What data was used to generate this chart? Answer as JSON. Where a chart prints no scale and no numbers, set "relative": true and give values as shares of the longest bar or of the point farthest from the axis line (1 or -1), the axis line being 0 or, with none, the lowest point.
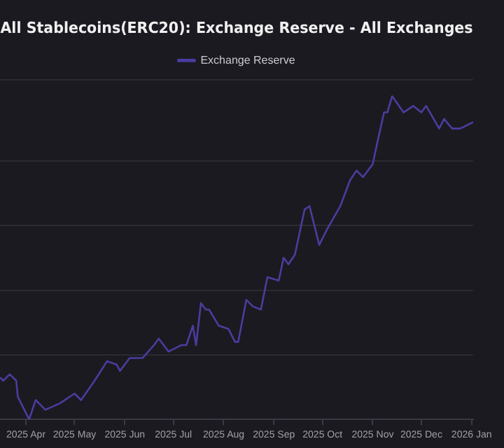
{
  "chart_data": {
    "type": "line",
    "title": "All Stablecoins(ERC20): Exchange Reserve - All Exchanges",
    "relative": true,
    "legend": "top",
    "grid": "y",
    "marker": "none",
    "x": [
      "2025-03-16",
      "2025-03-18",
      "2025-03-22",
      "2025-03-26",
      "2025-03-27",
      "2025-04-03",
      "2025-04-07",
      "2025-04-13",
      "2025-04-22",
      "2025-05-01",
      "2025-05-05",
      "2025-05-12",
      "2025-05-16",
      "2025-05-21",
      "2025-05-27",
      "2025-05-29",
      "2025-06-04",
      "2025-06-12",
      "2025-06-19",
      "2025-06-22",
      "2025-06-28",
      "2025-07-06",
      "2025-07-09",
      "2025-07-13",
      "2025-07-15",
      "2025-07-18",
      "2025-07-21",
      "2025-07-23",
      "2025-07-29",
      "2025-08-04",
      "2025-08-08",
      "2025-08-10",
      "2025-08-15",
      "2025-08-19",
      "2025-08-24",
      "2025-08-28",
      "2025-09-04",
      "2025-09-07",
      "2025-09-10",
      "2025-09-14",
      "2025-09-20",
      "2025-09-23",
      "2025-09-29",
      "2025-10-04",
      "2025-10-12",
      "2025-10-18",
      "2025-10-22",
      "2025-10-26",
      "2025-11-01",
      "2025-11-04",
      "2025-11-08",
      "2025-11-10",
      "2025-11-13",
      "2025-11-20",
      "2025-11-26",
      "2025-12-01",
      "2025-12-04",
      "2025-12-12",
      "2025-12-15",
      "2025-12-20",
      "2025-12-25",
      "2026-01-02"
    ],
    "series": [
      {
        "name": "Exchange Reserve",
        "color": "#4a3d9e",
        "values": [
          0.13,
          0.12,
          0.14,
          0.12,
          0.07,
          0,
          0.06,
          0.03,
          0.05,
          0.08,
          0.06,
          0.11,
          0.14,
          0.18,
          0.17,
          0.15,
          0.19,
          0.19,
          0.23,
          0.25,
          0.21,
          0.23,
          0.23,
          0.29,
          0.23,
          0.36,
          0.34,
          0.34,
          0.29,
          0.28,
          0.24,
          0.24,
          0.37,
          0.35,
          0.34,
          0.44,
          0.43,
          0.5,
          0.48,
          0.51,
          0.65,
          0.66,
          0.54,
          0.59,
          0.66,
          0.74,
          0.77,
          0.75,
          0.79,
          0.86,
          0.95,
          0.95,
          1,
          0.95,
          0.97,
          0.95,
          0.97,
          0.9,
          0.93,
          0.9,
          0.9,
          0.92
        ]
      }
    ],
    "xlim": [
      "2025-03-16",
      "2026-01-02"
    ],
    "xticks": [
      {
        "value": "2025-04-01",
        "label": "2025 Apr"
      },
      {
        "value": "2025-05-01",
        "label": "2025 May"
      },
      {
        "value": "2025-06-01",
        "label": "2025 Jun"
      },
      {
        "value": "2025-07-01",
        "label": "2025 Jul"
      },
      {
        "value": "2025-08-01",
        "label": "2025 Aug"
      },
      {
        "value": "2025-09-01",
        "label": "2025 Sep"
      },
      {
        "value": "2025-10-01",
        "label": "2025 Oct"
      },
      {
        "value": "2025-11-01",
        "label": "2025 Nov"
      },
      {
        "value": "2025-12-01",
        "label": "2025 Dec"
      },
      {
        "value": "2026-01-01",
        "label": "2026 Jan"
      }
    ]
  }
}
